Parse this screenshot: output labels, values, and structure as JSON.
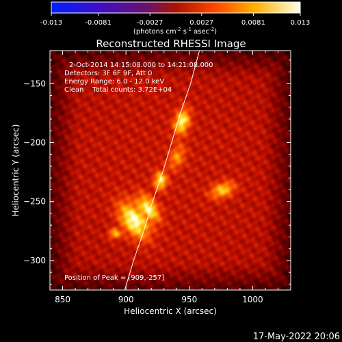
{
  "chart_data": {
    "type": "heatmap",
    "title": "Reconstructed RHESSI Image",
    "xlabel": "Heliocentric X (arcsec)",
    "ylabel": "Heliocentric Y (arcsec)",
    "xlim": [
      840,
      1030
    ],
    "ylim": [
      -325,
      -122
    ],
    "x_ticks": [
      850,
      900,
      950,
      1000
    ],
    "y_ticks": [
      -150,
      -200,
      -250,
      -300
    ],
    "colorbar": {
      "ticks": [
        "-0.013",
        "-0.0081",
        "-0.0027",
        "0.0027",
        "0.0081",
        "0.013"
      ],
      "range": [
        -0.013,
        0.013
      ],
      "units_label_parts": [
        "(photons cm",
        "-2",
        " s",
        "-1",
        " asec",
        "-2",
        ")"
      ]
    },
    "info_lines": [
      "2-Oct-2014 14:15:08.000 to 14:21:08.000",
      "Detectors: 3F 6F 9F, Att 0",
      "Energy Range: 6.0 - 12.0 keV",
      "Clean    Total counts: 3.72E+04"
    ],
    "peak_text": "Position of Peak = [909,-257]",
    "limb_curve": [
      [
        899,
        -325
      ],
      [
        906,
        -300
      ],
      [
        914,
        -275
      ],
      [
        921,
        -250
      ],
      [
        929,
        -225
      ],
      [
        936,
        -200
      ],
      [
        943,
        -175
      ],
      [
        951,
        -150
      ],
      [
        958,
        -122
      ]
    ],
    "sources": [
      {
        "x": 906,
        "y": -266,
        "rx": 16,
        "ry": 9,
        "angle_deg": 55,
        "peak": 1.0
      },
      {
        "x": 918,
        "y": -255,
        "rx": 12,
        "ry": 6,
        "angle_deg": 55,
        "peak": 0.85
      },
      {
        "x": 927,
        "y": -232,
        "rx": 5,
        "ry": 7,
        "angle_deg": 0,
        "peak": 0.85
      },
      {
        "x": 944,
        "y": -182,
        "rx": 6,
        "ry": 10,
        "angle_deg": 15,
        "peak": 0.9
      },
      {
        "x": 940,
        "y": -212,
        "rx": 6,
        "ry": 10,
        "angle_deg": 20,
        "peak": 0.5
      },
      {
        "x": 976,
        "y": -240,
        "rx": 10,
        "ry": 6,
        "angle_deg": -20,
        "peak": 0.7
      },
      {
        "x": 891,
        "y": -277,
        "rx": 5,
        "ry": 4,
        "angle_deg": 0,
        "peak": 0.65
      }
    ]
  },
  "timestamp": "17-May-2022 20:06"
}
